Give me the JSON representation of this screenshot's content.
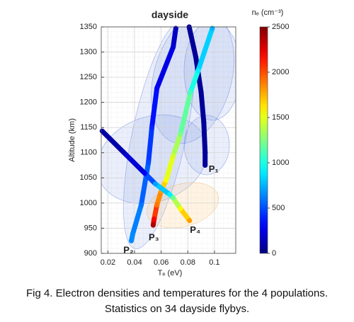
{
  "chart_data": {
    "type": "line",
    "title": "dayside",
    "xlabel": "Tₑ  (eV)",
    "ylabel": "Altitude (km)",
    "colorbar_label": "nₑ (cm⁻³)",
    "colormap": "jet",
    "clim": [
      0,
      2500
    ],
    "cticks": [
      0,
      500,
      1000,
      1500,
      2000,
      2500
    ],
    "xlim": [
      0.015,
      0.116
    ],
    "ylim": [
      900,
      1350
    ],
    "xticks": [
      0.02,
      0.04,
      0.06,
      0.08,
      0.1
    ],
    "yticks": [
      900,
      950,
      1000,
      1050,
      1100,
      1150,
      1200,
      1250,
      1300,
      1350
    ],
    "grid": true,
    "series": [
      {
        "name": "P₁",
        "x": [
          0.081,
          0.086,
          0.09,
          0.092,
          0.093,
          0.093
        ],
        "values": [
          1350,
          1290,
          1220,
          1160,
          1100,
          1075
        ],
        "ne": [
          60,
          60,
          60,
          60,
          60,
          60
        ]
      },
      {
        "name": "P₂",
        "x": [
          0.071,
          0.069,
          0.0568,
          0.053,
          0.0504,
          0.045,
          0.0387,
          0.0376
        ],
        "values": [
          1347,
          1310,
          1228,
          1150,
          1080,
          996,
          939,
          925
        ],
        "ne": [
          150,
          200,
          300,
          400,
          500,
          600,
          650,
          650
        ]
      },
      {
        "name": "P₃",
        "x": [
          0.0984,
          0.0877,
          0.082,
          0.0744,
          0.069,
          0.0637,
          0.06,
          0.0568,
          0.0547,
          0.054
        ],
        "values": [
          1347,
          1263,
          1220,
          1136,
          1094,
          1045,
          1024,
          996,
          968,
          956
        ],
        "ne": [
          750,
          900,
          1100,
          1250,
          1450,
          1550,
          1800,
          1900,
          2200,
          2400
        ]
      },
      {
        "name": "P₄",
        "x": [
          0.0157,
          0.0317,
          0.0477,
          0.0557,
          0.0664,
          0.069,
          0.0744,
          0.0813
        ],
        "values": [
          1143,
          1101,
          1059,
          1038,
          1017,
          1010,
          989,
          965
        ],
        "ne": [
          80,
          120,
          300,
          700,
          900,
          1200,
          1550,
          1800
        ]
      }
    ],
    "caption": [
      "Fig 4. Electron densities and temperatures for the 4 populations.",
      "Statistics on  34  dayside flybys."
    ]
  }
}
